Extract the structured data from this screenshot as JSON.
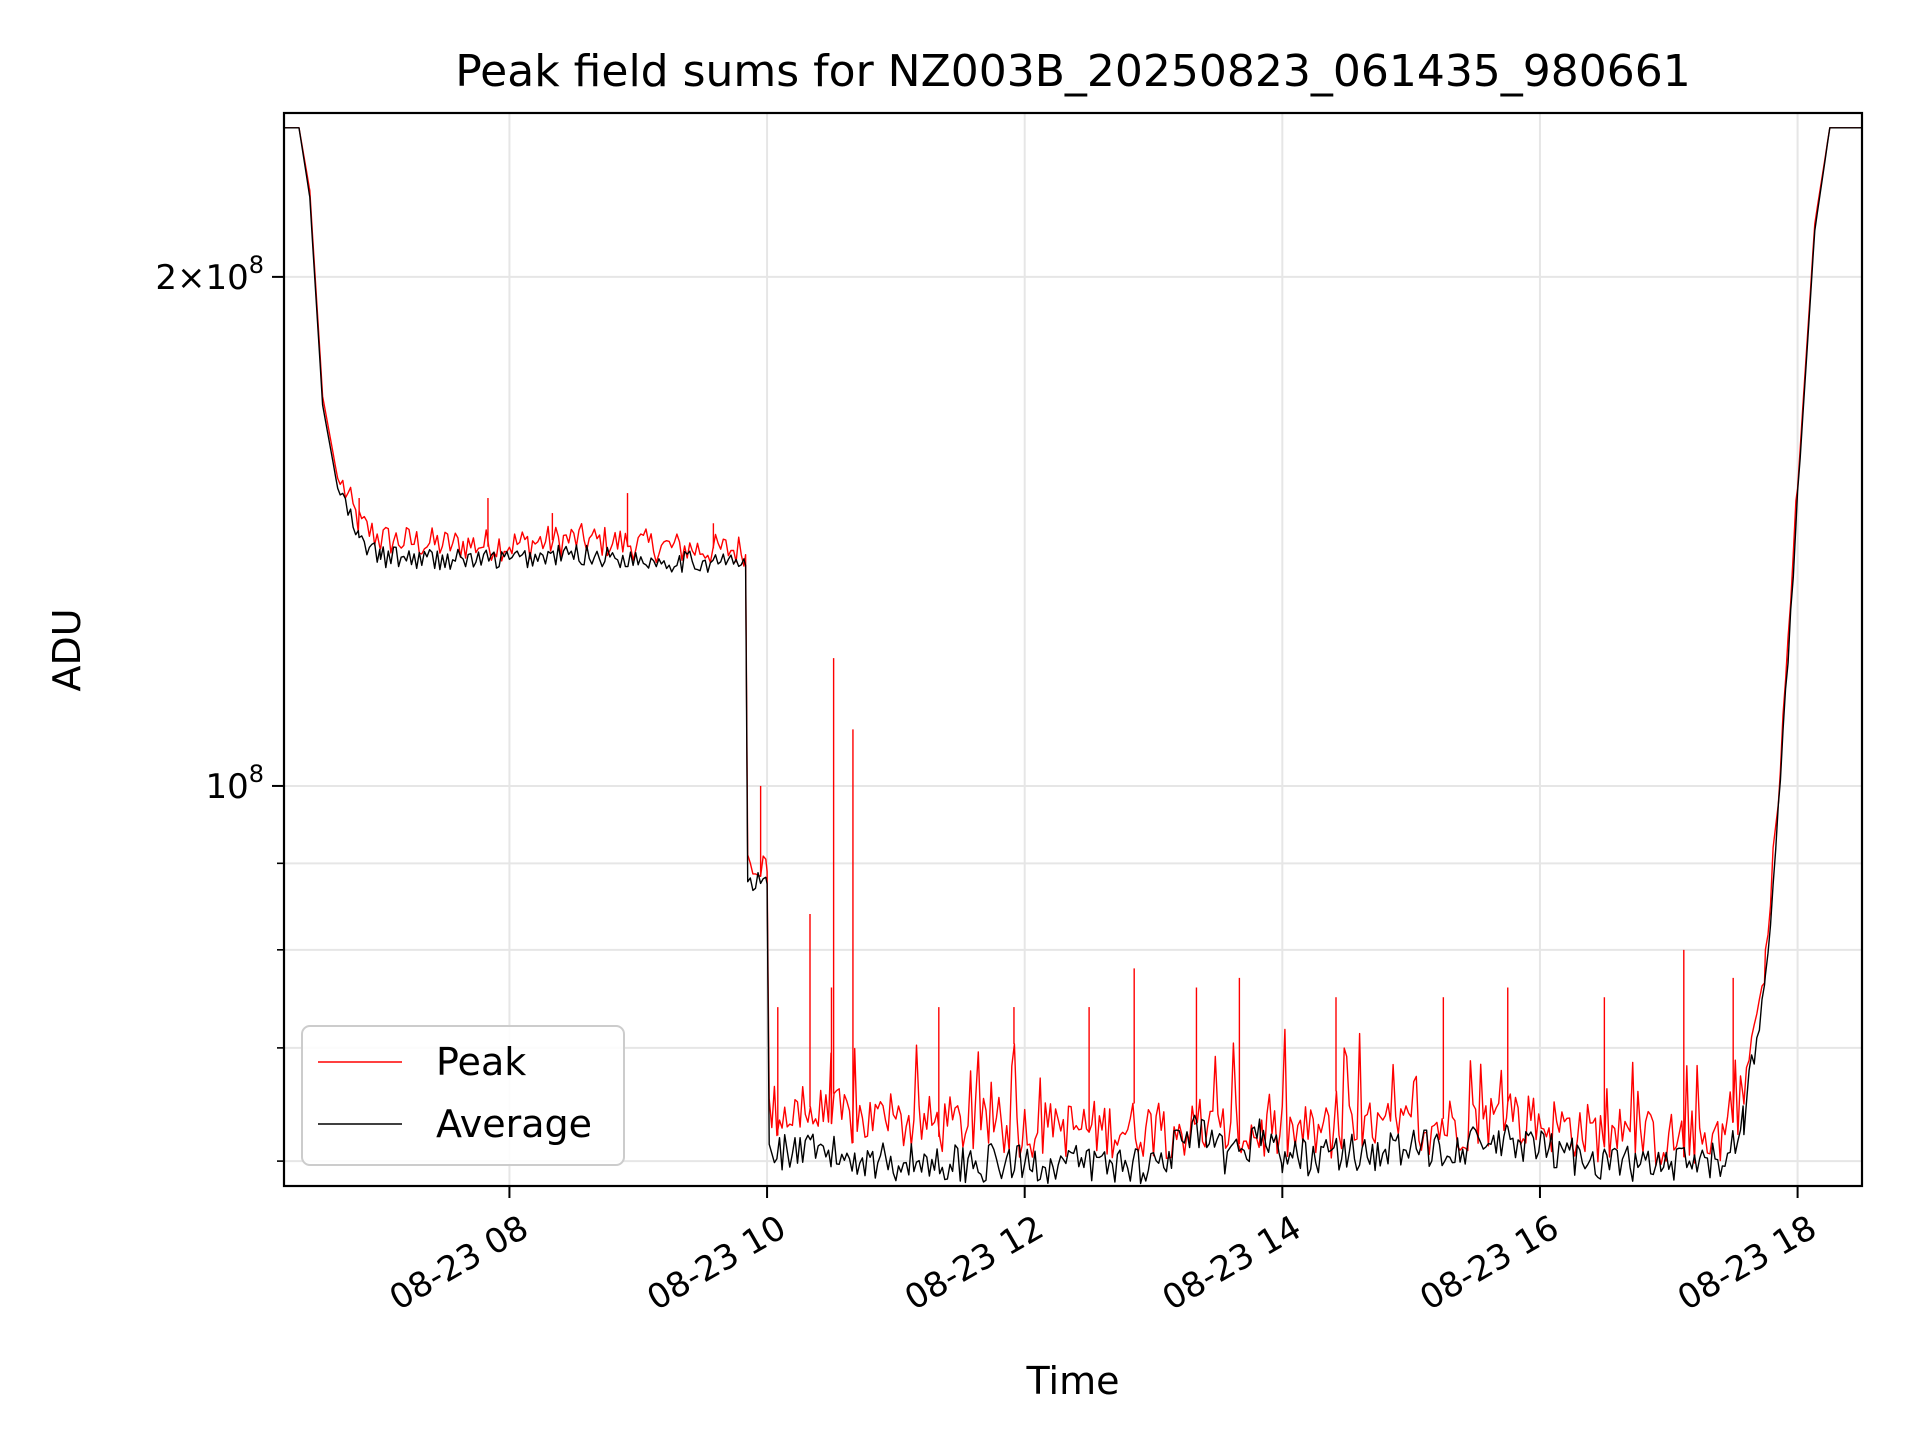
{
  "chart_data": {
    "type": "line",
    "title": "Peak field sums for NZ003B_20250823_061435_980661",
    "xlabel": "Time",
    "ylabel": "ADU",
    "x_scale": "time",
    "y_scale": "log",
    "xlim": [
      "2025-08-23 06:15",
      "2025-08-23 18:30"
    ],
    "ylim": [
      58000000,
      250000000
    ],
    "x_ticks": [
      {
        "value": "2025-08-23 08:00",
        "label": "08-23 08"
      },
      {
        "value": "2025-08-23 10:00",
        "label": "08-23 10"
      },
      {
        "value": "2025-08-23 12:00",
        "label": "08-23 12"
      },
      {
        "value": "2025-08-23 14:00",
        "label": "08-23 14"
      },
      {
        "value": "2025-08-23 16:00",
        "label": "08-23 16"
      },
      {
        "value": "2025-08-23 18:00",
        "label": "08-23 18"
      }
    ],
    "y_major_ticks": [
      {
        "value": 100000000,
        "base": "10",
        "exp": "8",
        "label": "10^8"
      },
      {
        "value": 200000000,
        "mant": "2",
        "base": "10",
        "exp": "8",
        "label": "2×10^8"
      }
    ],
    "y_minor_ticks": [
      60000000,
      70000000,
      80000000,
      90000000
    ],
    "grid": true,
    "legend_position": "lower-left",
    "series": [
      {
        "name": "Peak",
        "color": "#ff0000",
        "points": [
          [
            "2025-08-23 06:15",
            245000000
          ],
          [
            "2025-08-23 06:22",
            245000000
          ],
          [
            "2025-08-23 06:27",
            225000000
          ],
          [
            "2025-08-23 06:33",
            170000000
          ],
          [
            "2025-08-23 06:40",
            152000000
          ],
          [
            "2025-08-23 06:50",
            142000000
          ],
          [
            "2025-08-23 07:00",
            139000000
          ],
          [
            "2025-08-23 07:30",
            138000000
          ],
          [
            "2025-08-23 08:00",
            138000000
          ],
          [
            "2025-08-23 08:30",
            139000000
          ],
          [
            "2025-08-23 09:00",
            138000000
          ],
          [
            "2025-08-23 09:30",
            137000000
          ],
          [
            "2025-08-23 09:50",
            137000000
          ],
          [
            "2025-08-23 09:51",
            90000000
          ],
          [
            "2025-08-23 10:00",
            89000000
          ],
          [
            "2025-08-23 10:01",
            63500000
          ],
          [
            "2025-08-23 10:30",
            63000000
          ],
          [
            "2025-08-23 11:00",
            62500000
          ],
          [
            "2025-08-23 12:00",
            62000000
          ],
          [
            "2025-08-23 13:00",
            62000000
          ],
          [
            "2025-08-23 14:00",
            61500000
          ],
          [
            "2025-08-23 15:00",
            62000000
          ],
          [
            "2025-08-23 15:45",
            63000000
          ],
          [
            "2025-08-23 16:30",
            61500000
          ],
          [
            "2025-08-23 17:00",
            61000000
          ],
          [
            "2025-08-23 17:25",
            61500000
          ],
          [
            "2025-08-23 17:35",
            65000000
          ],
          [
            "2025-08-23 17:45",
            78000000
          ],
          [
            "2025-08-23 17:52",
            102000000
          ],
          [
            "2025-08-23 18:00",
            150000000
          ],
          [
            "2025-08-23 18:08",
            215000000
          ],
          [
            "2025-08-23 18:15",
            245000000
          ],
          [
            "2025-08-23 18:30",
            245000000
          ]
        ],
        "spikes": [
          [
            "2025-08-23 06:50",
            148000000
          ],
          [
            "2025-08-23 07:50",
            148000000
          ],
          [
            "2025-08-23 08:20",
            145000000
          ],
          [
            "2025-08-23 08:55",
            149000000
          ],
          [
            "2025-08-23 09:35",
            143000000
          ],
          [
            "2025-08-23 09:57",
            100000000
          ],
          [
            "2025-08-23 10:05",
            74000000
          ],
          [
            "2025-08-23 10:20",
            84000000
          ],
          [
            "2025-08-23 10:30",
            76000000
          ],
          [
            "2025-08-23 10:31",
            119000000
          ],
          [
            "2025-08-23 10:40",
            108000000
          ],
          [
            "2025-08-23 11:20",
            74000000
          ],
          [
            "2025-08-23 11:55",
            74000000
          ],
          [
            "2025-08-23 12:30",
            74000000
          ],
          [
            "2025-08-23 12:51",
            78000000
          ],
          [
            "2025-08-23 13:20",
            76000000
          ],
          [
            "2025-08-23 13:40",
            77000000
          ],
          [
            "2025-08-23 14:25",
            75000000
          ],
          [
            "2025-08-23 15:15",
            75000000
          ],
          [
            "2025-08-23 15:45",
            76000000
          ],
          [
            "2025-08-23 16:30",
            75000000
          ],
          [
            "2025-08-23 17:07",
            80000000
          ],
          [
            "2025-08-23 17:30",
            77000000
          ]
        ]
      },
      {
        "name": "Average",
        "color": "#000000",
        "points": [
          [
            "2025-08-23 06:15",
            245000000
          ],
          [
            "2025-08-23 06:22",
            245000000
          ],
          [
            "2025-08-23 06:27",
            223000000
          ],
          [
            "2025-08-23 06:33",
            168000000
          ],
          [
            "2025-08-23 06:40",
            150000000
          ],
          [
            "2025-08-23 06:50",
            139000000
          ],
          [
            "2025-08-23 07:00",
            136000000
          ],
          [
            "2025-08-23 07:30",
            135500000
          ],
          [
            "2025-08-23 08:00",
            135500000
          ],
          [
            "2025-08-23 08:30",
            136500000
          ],
          [
            "2025-08-23 09:00",
            135500000
          ],
          [
            "2025-08-23 09:30",
            135000000
          ],
          [
            "2025-08-23 09:50",
            135000000
          ],
          [
            "2025-08-23 09:51",
            87000000
          ],
          [
            "2025-08-23 10:00",
            87500000
          ],
          [
            "2025-08-23 10:01",
            60500000
          ],
          [
            "2025-08-23 10:30",
            60000000
          ],
          [
            "2025-08-23 11:00",
            59500000
          ],
          [
            "2025-08-23 12:00",
            59300000
          ],
          [
            "2025-08-23 13:00",
            59300000
          ],
          [
            "2025-08-23 13:20",
            62000000
          ],
          [
            "2025-08-23 13:35",
            59500000
          ],
          [
            "2025-08-23 13:50",
            62000000
          ],
          [
            "2025-08-23 14:00",
            59800000
          ],
          [
            "2025-08-23 15:00",
            60500000
          ],
          [
            "2025-08-23 15:45",
            61000000
          ],
          [
            "2025-08-23 16:30",
            59500000
          ],
          [
            "2025-08-23 17:00",
            59000000
          ],
          [
            "2025-08-23 17:25",
            59500000
          ],
          [
            "2025-08-23 17:35",
            63000000
          ],
          [
            "2025-08-23 17:45",
            76000000
          ],
          [
            "2025-08-23 17:52",
            100000000
          ],
          [
            "2025-08-23 18:00",
            148000000
          ],
          [
            "2025-08-23 18:08",
            213000000
          ],
          [
            "2025-08-23 18:15",
            245000000
          ],
          [
            "2025-08-23 18:30",
            245000000
          ]
        ]
      }
    ]
  }
}
